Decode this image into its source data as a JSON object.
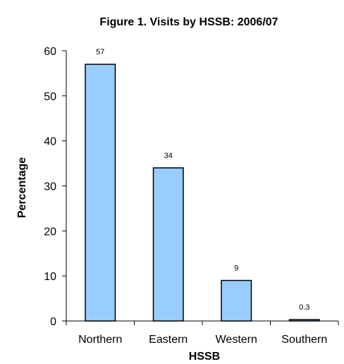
{
  "chart_data": {
    "type": "bar",
    "title": "Figure 1. Visits by HSSB: 2006/07",
    "xlabel": "HSSB",
    "ylabel": "Percentage",
    "categories": [
      "Northern",
      "Eastern",
      "Western",
      "Southern"
    ],
    "values": [
      57,
      34,
      9,
      0.3
    ],
    "value_labels": [
      "57",
      "34",
      "9",
      "0.3"
    ],
    "ylim": [
      0,
      60
    ],
    "yticks": [
      0,
      10,
      20,
      30,
      40,
      50,
      60
    ],
    "grid": false,
    "legend": "none",
    "bar_color": "#99ccff",
    "bar_stroke": "#000000"
  }
}
